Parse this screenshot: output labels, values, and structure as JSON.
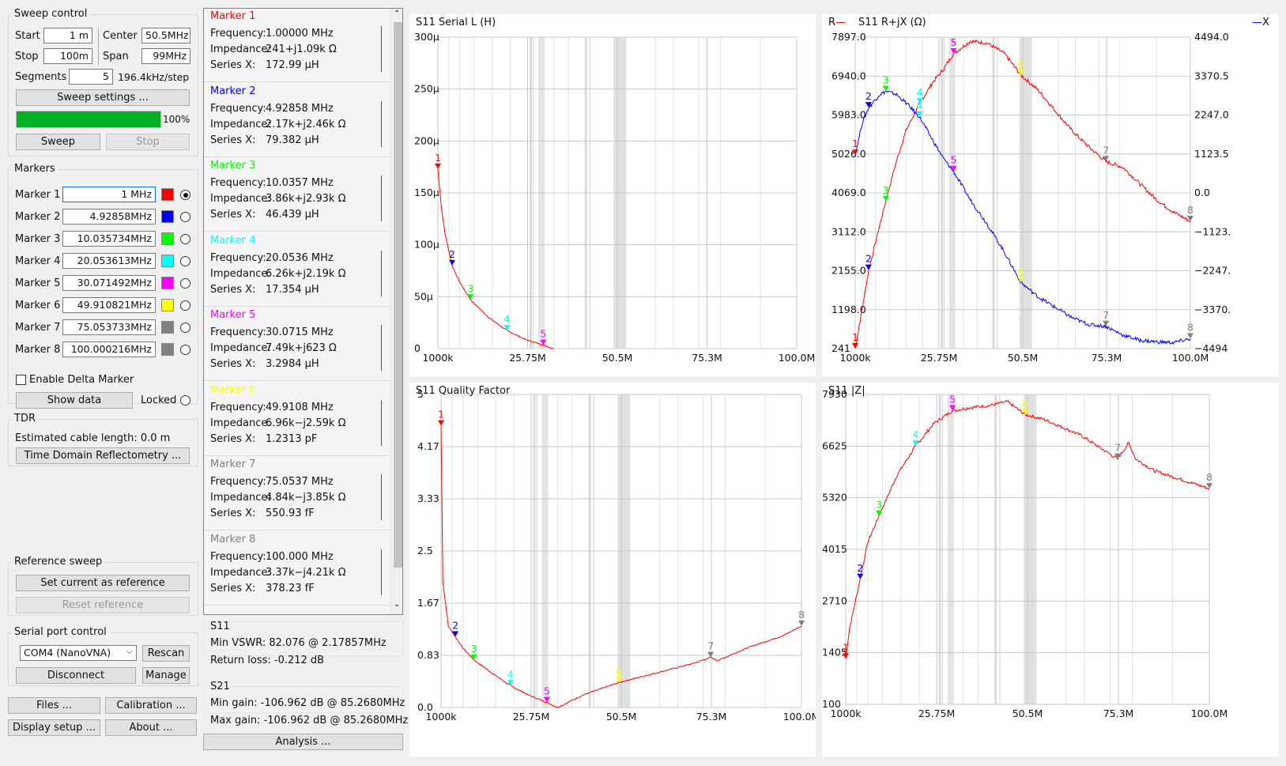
{
  "sweep_control": {
    "title": "Sweep control",
    "start_label": "Start",
    "start_value": "1 m",
    "center_label": "Center",
    "center_value": "50.5MHz",
    "stop_label": "Stop",
    "stop_value": "100m",
    "span_label": "Span",
    "span_value": "99MHz",
    "segments_label": "Segments",
    "segments_value": "5",
    "step_text": "196.4kHz/step",
    "settings_button": "Sweep settings ...",
    "progress": 1.0,
    "progress_text": "100%",
    "sweep_button": "Sweep",
    "stop_button": "Stop"
  },
  "markers": {
    "title": "Markers",
    "items": [
      {
        "label": "Marker 1",
        "value": "1 MHz",
        "color": "#ff0000",
        "selected": true
      },
      {
        "label": "Marker 2",
        "value": "4.92858MHz",
        "color": "#0000ff",
        "selected": false
      },
      {
        "label": "Marker 3",
        "value": "10.035734MHz",
        "color": "#00ff00",
        "selected": false
      },
      {
        "label": "Marker 4",
        "value": "20.053613MHz",
        "color": "#00ffff",
        "selected": false
      },
      {
        "label": "Marker 5",
        "value": "30.071492MHz",
        "color": "#ff00ff",
        "selected": false
      },
      {
        "label": "Marker 6",
        "value": "49.910821MHz",
        "color": "#ffff00",
        "selected": false
      },
      {
        "label": "Marker 7",
        "value": "75.053733MHz",
        "color": "#808080",
        "selected": false
      },
      {
        "label": "Marker 8",
        "value": "100.000216MHz",
        "color": "#808080",
        "selected": false
      }
    ],
    "delta_label": "Enable Delta Marker",
    "show_data_button": "Show data",
    "locked_label": "Locked"
  },
  "tdr": {
    "title": "TDR",
    "cable_text": "Estimated cable length: 0.0 m",
    "tdr_button": "Time Domain Reflectometry ..."
  },
  "reference_sweep": {
    "title": "Reference sweep",
    "set_button": "Set current as reference",
    "reset_button": "Reset reference"
  },
  "serial_port": {
    "title": "Serial port control",
    "port_value": "COM4 (NanoVNA)",
    "rescan_button": "Rescan",
    "disconnect_button": "Disconnect",
    "manage_button": "Manage"
  },
  "bottom_buttons": {
    "files": "Files ...",
    "calibration": "Calibration ...",
    "display_setup": "Display setup ...",
    "about": "About ...",
    "analysis": "Analysis ..."
  },
  "marker_details": [
    {
      "title": "Marker 1",
      "color": "#ff0000",
      "frequency": "1.00000 MHz",
      "impedance": "241+j1.09k Ω",
      "series_x": "172.99 μH"
    },
    {
      "title": "Marker 2",
      "color": "#0000ff",
      "frequency": "4.92858 MHz",
      "impedance": "2.17k+j2.46k Ω",
      "series_x": "79.382 μH"
    },
    {
      "title": "Marker 3",
      "color": "#00ff00",
      "frequency": "10.0357 MHz",
      "impedance": "3.86k+j2.93k Ω",
      "series_x": "46.439 μH"
    },
    {
      "title": "Marker 4",
      "color": "#00ffff",
      "frequency": "20.0536 MHz",
      "impedance": "6.26k+j2.19k Ω",
      "series_x": "17.354 μH"
    },
    {
      "title": "Marker 5",
      "color": "#ff00ff",
      "frequency": "30.0715 MHz",
      "impedance": "7.49k+j623 Ω",
      "series_x": "3.2984 μH"
    },
    {
      "title": "Marker 6",
      "color": "#ffff00",
      "frequency": "49.9108 MHz",
      "impedance": "6.96k−j2.59k Ω",
      "series_x": "1.2313 pF"
    },
    {
      "title": "Marker 7",
      "color": "#808080",
      "frequency": "75.0537 MHz",
      "impedance": "4.84k−j3.85k Ω",
      "series_x": "550.93 fF"
    },
    {
      "title": "Marker 8",
      "color": "#808080",
      "frequency": "100.000 MHz",
      "impedance": "3.37k−j4.21k Ω",
      "series_x": "378.23 fF"
    }
  ],
  "detail_labels": {
    "frequency": "Frequency:",
    "impedance": "Impedance:",
    "series_x": "Series X:"
  },
  "s11_summary": {
    "title": "S11",
    "min_vswr": "Min VSWR:  82.076 @ 2.17857MHz",
    "return_loss": "Return loss: -0.212 dB"
  },
  "s21_summary": {
    "title": "S21",
    "min_gain": "Min gain:  -106.962 dB @ 85.2680MHz",
    "max_gain": "Max gain:  -106.962 dB @ 85.2680MHz"
  },
  "chart_data": [
    {
      "type": "line",
      "title": "S11 Serial L (H)",
      "x_ticks": [
        "1000k",
        "25.75M",
        "50.5M",
        "75.3M",
        "100.0M"
      ],
      "y_ticks": [
        "300μ",
        "250μ",
        "200μ",
        "150μ",
        "100μ",
        "50μ",
        "0"
      ],
      "x": [
        1,
        2,
        3,
        4.93,
        7,
        10.04,
        15,
        20.05,
        25,
        30.07,
        33
      ],
      "series": [
        {
          "color": "#ff0000",
          "values": [
            173,
            135,
            110,
            80,
            64,
            47,
            30,
            17.4,
            9,
            3.3,
            0
          ]
        }
      ],
      "markers": [
        {
          "n": "1",
          "x": 1,
          "y": 173,
          "color": "#ff0000"
        },
        {
          "n": "2",
          "x": 4.93,
          "y": 80,
          "color": "#0000ff"
        },
        {
          "n": "3",
          "x": 10.04,
          "y": 47,
          "color": "#00ff00"
        },
        {
          "n": "4",
          "x": 20.05,
          "y": 17.4,
          "color": "#00ffff"
        },
        {
          "n": "5",
          "x": 30.07,
          "y": 3.3,
          "color": "#ff00ff"
        }
      ]
    },
    {
      "type": "line",
      "title": "S11 R+jX (Ω)",
      "legend_left": "R",
      "legend_right": "X",
      "left_ticks": [
        "7897.0",
        "6940.0",
        "5983.0",
        "5026.0",
        "4069.0",
        "3112.0",
        "2155.0",
        "1198.0",
        "241"
      ],
      "right_ticks": [
        "4494.0",
        "3370.5",
        "2247.0",
        "1123.5",
        "0.0",
        "−1123.",
        "−2247.",
        "−3370.",
        "−4494"
      ],
      "x_ticks": [
        "1000k",
        "25.75M",
        "50.5M",
        "75.3M",
        "100.0M"
      ],
      "x": [
        1,
        3,
        5,
        8,
        10,
        13,
        16,
        20,
        24,
        27,
        30,
        35,
        40,
        45,
        50,
        55,
        60,
        65,
        70,
        75,
        80,
        85,
        90,
        95,
        100
      ],
      "series": [
        {
          "name": "R",
          "color": "#ff0000",
          "values": [
            241,
            1200,
            2170,
            3200,
            3860,
            4800,
            5600,
            6260,
            6800,
            7100,
            7490,
            7800,
            7750,
            7500,
            6960,
            6600,
            6100,
            5600,
            5200,
            4840,
            4700,
            4300,
            3900,
            3600,
            3370
          ]
        },
        {
          "name": "X",
          "color": "#0000ff",
          "values": [
            1090,
            2000,
            2460,
            2820,
            2930,
            2850,
            2600,
            2190,
            1500,
            1000,
            623,
            -200,
            -900,
            -1700,
            -2590,
            -3000,
            -3300,
            -3600,
            -3800,
            -3850,
            -4100,
            -4250,
            -4300,
            -4320,
            -4210
          ]
        }
      ]
    },
    {
      "type": "line",
      "title": "S11 Quality Factor",
      "y_ticks": [
        "5",
        "4.17",
        "3.33",
        "2.5",
        "1.67",
        "0.83",
        "0.0"
      ],
      "x_ticks": [
        "1000k",
        "25.75M",
        "50.5M",
        "75.3M",
        "100.0M"
      ],
      "x": [
        1,
        1.5,
        3,
        4.93,
        7,
        10.04,
        15,
        20.05,
        25,
        30.07,
        33,
        40,
        49.91,
        60,
        70,
        75.05,
        77,
        85,
        95,
        100
      ],
      "series": [
        {
          "color": "#ff0000",
          "values": [
            4.5,
            2.0,
            1.3,
            1.13,
            0.95,
            0.76,
            0.55,
            0.35,
            0.2,
            0.08,
            0.0,
            0.2,
            0.4,
            0.55,
            0.7,
            0.8,
            0.75,
            0.95,
            1.15,
            1.3
          ]
        }
      ]
    },
    {
      "type": "line",
      "title": "S11 |Z|",
      "y_ticks": [
        "7930",
        "6625",
        "5320",
        "4015",
        "2710",
        "1405",
        "100"
      ],
      "x_ticks": [
        "1000k",
        "25.75M",
        "50.5M",
        "75.3M",
        "100.0M"
      ],
      "x": [
        1,
        2,
        4.93,
        7,
        10.04,
        15,
        20.05,
        25,
        30.07,
        35,
        40,
        45,
        49.91,
        55,
        60,
        65,
        70,
        75.05,
        78,
        80,
        85,
        90,
        95,
        100
      ],
      "series": [
        {
          "color": "#ff0000",
          "values": [
            1250,
            2000,
            3260,
            4200,
            4860,
            5900,
            6630,
            7200,
            7520,
            7600,
            7650,
            7750,
            7420,
            7300,
            7100,
            6900,
            6600,
            6300,
            6700,
            6300,
            6000,
            5850,
            5700,
            5550
          ]
        }
      ]
    }
  ]
}
